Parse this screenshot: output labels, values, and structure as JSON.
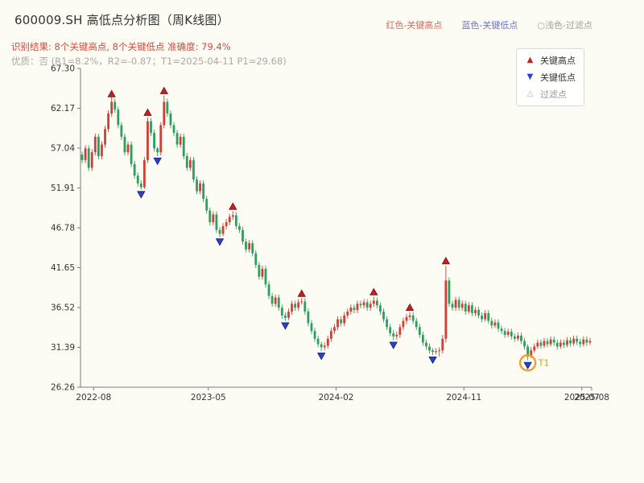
{
  "header": {
    "title": "600009.SH 高低点分析图（周K线图）",
    "result_line": "识别结果: 8个关键高点, 8个关键低点  准确度: 79.4%",
    "result_color": "#cf4a3c",
    "quality_line": "优质：否 (R1=8.2%，R2=-0.87；T1=2025-04-11 P1=29.68)",
    "quality_color": "#a9a9a9",
    "legend_top": [
      {
        "label": "红色-关键高点",
        "color": "#cf6a5f"
      },
      {
        "label": "蓝色-关键低点",
        "color": "#6b74c8"
      },
      {
        "label": "○浅色-过滤点",
        "color": "#a0a0a0"
      }
    ]
  },
  "chart_data": {
    "type": "candlestick",
    "title": "600009.SH 高低点分析图（周K线图）",
    "symbol": "600009.SH",
    "interval": "weekly",
    "ylim": [
      26.26,
      67.3
    ],
    "yticks": [
      67.3,
      62.17,
      57.04,
      51.91,
      46.78,
      41.65,
      36.52,
      31.39,
      26.26
    ],
    "xticks": [
      {
        "week": 4,
        "label": "2022-08"
      },
      {
        "week": 39,
        "label": "2023-05"
      },
      {
        "week": 78,
        "label": "2024-02"
      },
      {
        "week": 117,
        "label": "2024-11"
      },
      {
        "week": 153,
        "label": "2025-07"
      },
      {
        "week": 156,
        "label": "2025-08"
      }
    ],
    "colors": {
      "up": "#cf3f35",
      "down": "#2e9e5e",
      "key_high": "#c81e1e",
      "key_high_edge": "#701010",
      "key_low": "#2742cc",
      "key_low_edge": "#101c70",
      "filtered": "#bbbbbb",
      "t1": "#f09d2a",
      "t1_text": "#e0941a",
      "axis": "#7a7a7a",
      "tick_label": "#333333"
    },
    "candles": [
      [
        56.2,
        56.6,
        55.1,
        55.5
      ],
      [
        55.5,
        57.4,
        55.1,
        57.0
      ],
      [
        57.0,
        57.4,
        54.1,
        54.5
      ],
      [
        54.5,
        56.9,
        54.1,
        56.5
      ],
      [
        56.5,
        58.9,
        56.1,
        58.5
      ],
      [
        58.5,
        58.9,
        55.6,
        56.0
      ],
      [
        56.0,
        57.9,
        55.6,
        57.5
      ],
      [
        57.5,
        59.9,
        57.1,
        59.5
      ],
      [
        59.5,
        61.9,
        59.1,
        61.5
      ],
      [
        61.5,
        63.6,
        61.1,
        63.0
      ],
      [
        63.0,
        63.4,
        61.6,
        62.0
      ],
      [
        62.0,
        62.4,
        59.6,
        60.0
      ],
      [
        60.0,
        60.4,
        58.1,
        58.5
      ],
      [
        58.5,
        58.9,
        56.1,
        56.5
      ],
      [
        56.5,
        57.9,
        56.1,
        57.5
      ],
      [
        57.5,
        57.9,
        54.6,
        55.0
      ],
      [
        55.0,
        55.4,
        53.1,
        53.5
      ],
      [
        53.5,
        53.9,
        52.1,
        52.5
      ],
      [
        52.5,
        52.9,
        51.7,
        52.0
      ],
      [
        52.0,
        55.9,
        51.8,
        55.5
      ],
      [
        55.5,
        61.0,
        55.1,
        60.5
      ],
      [
        60.5,
        60.9,
        58.6,
        59.0
      ],
      [
        59.0,
        59.4,
        56.6,
        57.0
      ],
      [
        57.0,
        57.2,
        56.0,
        56.5
      ],
      [
        56.5,
        60.4,
        56.1,
        60.0
      ],
      [
        60.0,
        63.8,
        59.6,
        63.0
      ],
      [
        63.0,
        63.4,
        61.1,
        61.5
      ],
      [
        61.5,
        61.9,
        59.6,
        60.0
      ],
      [
        60.0,
        60.4,
        58.6,
        59.0
      ],
      [
        59.0,
        59.4,
        57.1,
        57.5
      ],
      [
        57.5,
        58.9,
        57.1,
        58.5
      ],
      [
        58.5,
        58.9,
        55.6,
        56.0
      ],
      [
        56.0,
        56.4,
        54.1,
        54.5
      ],
      [
        54.5,
        55.9,
        54.1,
        55.5
      ],
      [
        55.5,
        55.9,
        52.6,
        53.0
      ],
      [
        53.0,
        53.4,
        51.1,
        51.5
      ],
      [
        51.5,
        52.9,
        51.1,
        52.5
      ],
      [
        52.5,
        52.9,
        50.1,
        50.5
      ],
      [
        50.5,
        50.9,
        48.6,
        49.0
      ],
      [
        49.0,
        49.4,
        47.1,
        47.5
      ],
      [
        47.5,
        48.9,
        47.1,
        48.5
      ],
      [
        48.5,
        48.9,
        46.1,
        46.5
      ],
      [
        46.5,
        46.9,
        45.6,
        46.0
      ],
      [
        46.0,
        47.4,
        45.7,
        47.0
      ],
      [
        47.0,
        47.9,
        46.6,
        47.5
      ],
      [
        47.5,
        48.6,
        47.1,
        48.2
      ],
      [
        48.2,
        48.9,
        47.8,
        48.4
      ],
      [
        48.4,
        48.8,
        46.6,
        47.0
      ],
      [
        47.0,
        47.4,
        46.1,
        46.5
      ],
      [
        46.5,
        46.9,
        44.6,
        45.0
      ],
      [
        45.0,
        45.4,
        43.6,
        44.0
      ],
      [
        44.0,
        45.2,
        43.6,
        44.8
      ],
      [
        44.8,
        45.2,
        43.1,
        43.5
      ],
      [
        43.5,
        43.9,
        41.6,
        42.0
      ],
      [
        42.0,
        42.4,
        40.1,
        40.5
      ],
      [
        40.5,
        41.9,
        40.1,
        41.5
      ],
      [
        41.5,
        41.9,
        39.1,
        39.5
      ],
      [
        39.5,
        39.9,
        37.6,
        38.0
      ],
      [
        38.0,
        38.4,
        36.6,
        37.0
      ],
      [
        37.0,
        38.2,
        36.6,
        37.8
      ],
      [
        37.8,
        38.2,
        36.1,
        36.5
      ],
      [
        36.5,
        36.9,
        35.1,
        35.5
      ],
      [
        35.5,
        35.9,
        34.8,
        35.2
      ],
      [
        35.2,
        36.4,
        34.9,
        36.0
      ],
      [
        36.0,
        37.4,
        35.6,
        37.0
      ],
      [
        37.0,
        37.4,
        36.1,
        36.5
      ],
      [
        36.5,
        37.6,
        36.1,
        37.2
      ],
      [
        37.2,
        37.7,
        36.9,
        37.3
      ],
      [
        37.3,
        37.7,
        35.6,
        36.0
      ],
      [
        36.0,
        36.4,
        34.1,
        34.5
      ],
      [
        34.5,
        34.9,
        33.1,
        33.5
      ],
      [
        33.5,
        33.9,
        32.1,
        32.5
      ],
      [
        32.5,
        32.9,
        31.4,
        31.8
      ],
      [
        31.8,
        32.1,
        30.9,
        31.4
      ],
      [
        31.4,
        32.0,
        31.0,
        31.6
      ],
      [
        31.6,
        32.9,
        31.2,
        32.5
      ],
      [
        32.5,
        33.9,
        32.1,
        33.5
      ],
      [
        33.5,
        34.4,
        33.1,
        34.0
      ],
      [
        34.0,
        35.4,
        33.6,
        35.0
      ],
      [
        35.0,
        35.4,
        34.1,
        34.5
      ],
      [
        34.5,
        35.9,
        34.1,
        35.5
      ],
      [
        35.5,
        36.4,
        35.1,
        36.0
      ],
      [
        36.0,
        36.9,
        35.6,
        36.5
      ],
      [
        36.5,
        36.9,
        35.8,
        36.2
      ],
      [
        36.2,
        37.4,
        35.8,
        37.0
      ],
      [
        37.0,
        37.4,
        36.4,
        36.8
      ],
      [
        36.8,
        37.6,
        36.4,
        37.2
      ],
      [
        37.2,
        37.6,
        36.1,
        36.5
      ],
      [
        36.5,
        37.4,
        36.1,
        37.0
      ],
      [
        37.0,
        37.9,
        36.6,
        37.4
      ],
      [
        37.4,
        37.8,
        36.4,
        36.8
      ],
      [
        36.8,
        37.2,
        35.6,
        36.0
      ],
      [
        36.0,
        36.4,
        34.6,
        35.0
      ],
      [
        35.0,
        35.4,
        33.6,
        34.0
      ],
      [
        34.0,
        34.4,
        32.8,
        33.2
      ],
      [
        33.2,
        33.6,
        32.3,
        32.8
      ],
      [
        32.8,
        33.4,
        32.4,
        33.0
      ],
      [
        33.0,
        34.4,
        32.6,
        34.0
      ],
      [
        34.0,
        35.2,
        33.6,
        34.8
      ],
      [
        34.8,
        35.7,
        34.4,
        35.3
      ],
      [
        35.3,
        35.9,
        34.9,
        35.5
      ],
      [
        35.5,
        35.9,
        34.4,
        34.8
      ],
      [
        34.8,
        35.2,
        33.6,
        34.0
      ],
      [
        34.0,
        34.4,
        32.6,
        33.0
      ],
      [
        33.0,
        33.4,
        31.6,
        32.0
      ],
      [
        32.0,
        32.4,
        31.1,
        31.5
      ],
      [
        31.5,
        31.9,
        30.6,
        31.0
      ],
      [
        31.0,
        31.3,
        30.4,
        30.8
      ],
      [
        30.8,
        31.3,
        30.5,
        30.9
      ],
      [
        30.9,
        31.4,
        30.2,
        31.0
      ],
      [
        31.0,
        33.0,
        30.6,
        32.5
      ],
      [
        32.5,
        41.9,
        32.0,
        40.0
      ],
      [
        40.0,
        40.4,
        36.6,
        37.0
      ],
      [
        37.0,
        37.4,
        36.1,
        36.5
      ],
      [
        36.5,
        37.9,
        36.1,
        37.5
      ],
      [
        37.5,
        37.9,
        36.1,
        36.5
      ],
      [
        36.5,
        37.4,
        36.1,
        37.0
      ],
      [
        37.0,
        37.4,
        35.6,
        36.0
      ],
      [
        36.0,
        37.2,
        35.7,
        36.8
      ],
      [
        36.8,
        37.2,
        35.4,
        35.8
      ],
      [
        35.8,
        36.6,
        35.4,
        36.2
      ],
      [
        36.2,
        36.6,
        35.1,
        35.5
      ],
      [
        35.5,
        35.9,
        34.6,
        35.0
      ],
      [
        35.0,
        36.2,
        34.7,
        35.8
      ],
      [
        35.8,
        36.2,
        34.4,
        34.8
      ],
      [
        34.8,
        35.2,
        33.8,
        34.2
      ],
      [
        34.2,
        35.0,
        33.9,
        34.6
      ],
      [
        34.6,
        35.0,
        33.4,
        33.8
      ],
      [
        33.8,
        34.2,
        33.1,
        33.5
      ],
      [
        33.5,
        33.9,
        32.6,
        33.0
      ],
      [
        33.0,
        33.8,
        32.7,
        33.4
      ],
      [
        33.4,
        33.8,
        32.4,
        32.8
      ],
      [
        32.8,
        33.2,
        32.1,
        32.5
      ],
      [
        32.5,
        33.3,
        32.2,
        32.9
      ],
      [
        32.9,
        33.3,
        31.8,
        32.2
      ],
      [
        32.2,
        32.6,
        31.1,
        31.5
      ],
      [
        31.5,
        31.8,
        29.7,
        30.2
      ],
      [
        30.2,
        31.4,
        30.0,
        31.0
      ],
      [
        31.0,
        31.9,
        30.7,
        31.5
      ],
      [
        31.5,
        32.4,
        31.2,
        32.0
      ],
      [
        32.0,
        32.4,
        31.2,
        31.6
      ],
      [
        31.6,
        32.6,
        31.3,
        32.2
      ],
      [
        32.2,
        32.6,
        31.4,
        31.8
      ],
      [
        31.8,
        32.8,
        31.5,
        32.4
      ],
      [
        32.4,
        32.8,
        31.6,
        32.0
      ],
      [
        32.0,
        32.4,
        31.1,
        31.5
      ],
      [
        31.5,
        32.4,
        31.2,
        32.0
      ],
      [
        32.0,
        32.4,
        31.3,
        31.7
      ],
      [
        31.7,
        32.7,
        31.4,
        32.3
      ],
      [
        32.3,
        32.7,
        31.5,
        31.9
      ],
      [
        31.9,
        32.9,
        31.6,
        32.5
      ],
      [
        32.5,
        32.9,
        31.7,
        32.1
      ],
      [
        32.1,
        32.5,
        31.4,
        31.8
      ],
      [
        31.8,
        32.8,
        31.5,
        32.4
      ],
      [
        32.4,
        32.8,
        31.6,
        32.0
      ],
      [
        32.0,
        32.6,
        31.7,
        32.2
      ]
    ],
    "key_highs": [
      {
        "week": 9,
        "price": 64.0
      },
      {
        "week": 20,
        "price": 61.6
      },
      {
        "week": 25,
        "price": 64.4
      },
      {
        "week": 46,
        "price": 49.5
      },
      {
        "week": 67,
        "price": 38.3
      },
      {
        "week": 89,
        "price": 38.5
      },
      {
        "week": 100,
        "price": 36.5
      },
      {
        "week": 111,
        "price": 42.5
      }
    ],
    "key_lows": [
      {
        "week": 18,
        "price": 51.1
      },
      {
        "week": 23,
        "price": 55.4
      },
      {
        "week": 42,
        "price": 45.0
      },
      {
        "week": 62,
        "price": 34.2
      },
      {
        "week": 73,
        "price": 30.3
      },
      {
        "week": 95,
        "price": 31.7
      },
      {
        "week": 107,
        "price": 29.8
      },
      {
        "week": 136,
        "price": 29.1
      }
    ],
    "filtered_points": [],
    "t1": {
      "week": 136,
      "price": 29.4,
      "label": "T1",
      "date": "2025-04-11",
      "p1": 29.68
    },
    "legend": [
      {
        "icon": "▲",
        "label": "关键高点",
        "color": "#c81e1e",
        "label_color": "#333333"
      },
      {
        "icon": "▼",
        "label": "关键低点",
        "color": "#2742cc",
        "label_color": "#333333"
      },
      {
        "icon": "△",
        "label": "过滤点",
        "color": "#aaaaaa",
        "label_color": "#999999"
      }
    ]
  }
}
